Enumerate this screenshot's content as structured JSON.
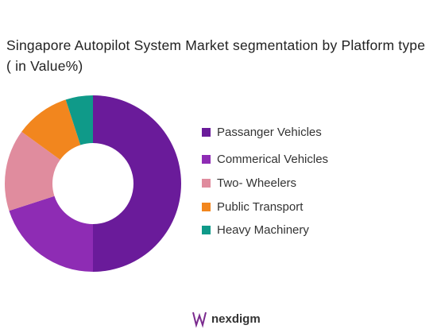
{
  "chart_data": {
    "type": "donut",
    "title": "Singapore Autopilot System Market segmentation by Platform type ( in Value%)",
    "categories": [
      "Passanger Vehicles",
      "Commerical Vehicles",
      "Two- Wheelers",
      "Public Transport",
      "Heavy Machinery"
    ],
    "values": [
      50,
      20,
      15,
      10,
      5
    ],
    "colors": [
      "#6a1b9a",
      "#8e2cb4",
      "#e08c9e",
      "#f2861e",
      "#0f9a89"
    ],
    "legend": "right"
  },
  "logo": "nexdigm"
}
